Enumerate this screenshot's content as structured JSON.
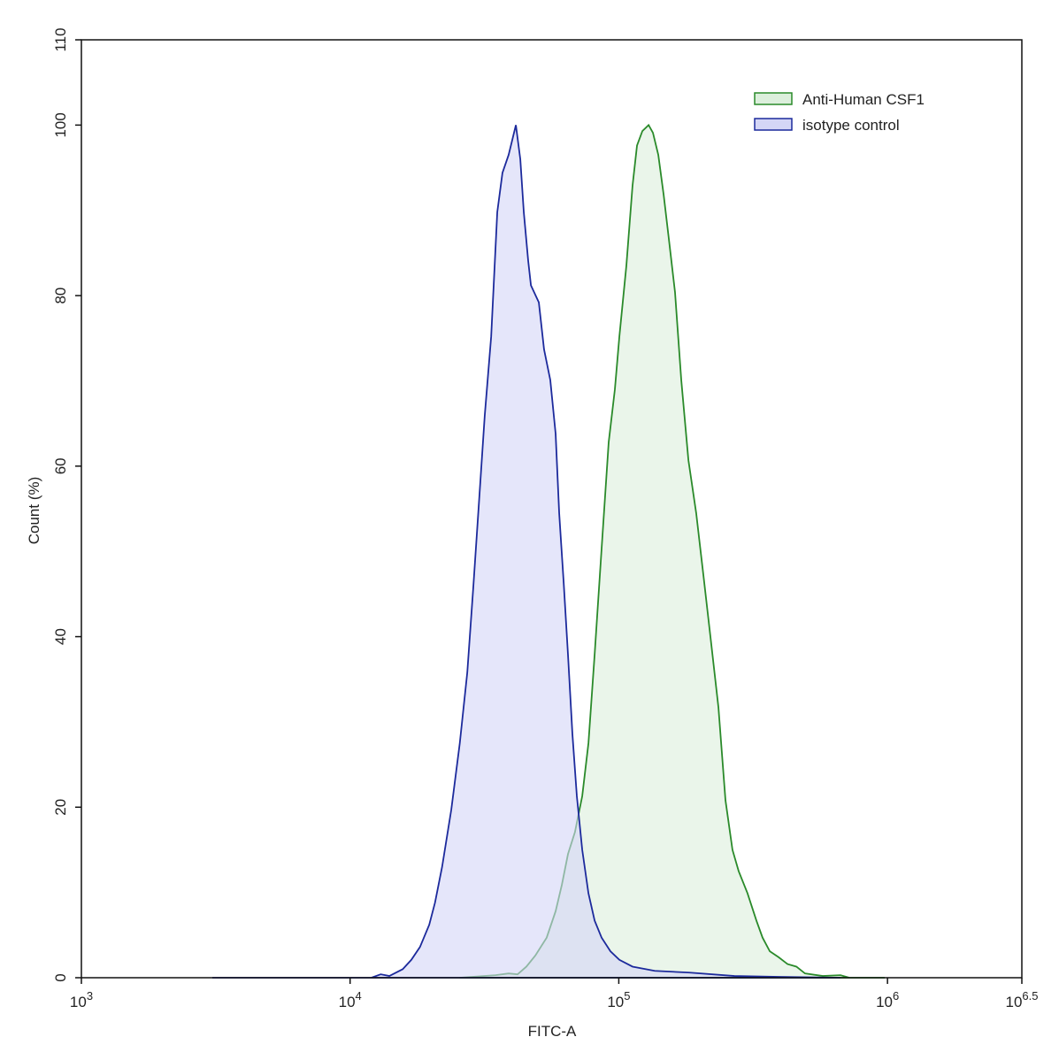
{
  "chart_data": {
    "type": "histogram-overlay",
    "x_label": "FITC-A",
    "y_label": "Count  (%)",
    "xscale": "log",
    "xlim": [
      1000,
      3162277.66
    ],
    "ylim": [
      0,
      110
    ],
    "xticks": [
      {
        "value": 1000,
        "label": "10",
        "exponent": "3"
      },
      {
        "value": 10000,
        "label": "10",
        "exponent": "4"
      },
      {
        "value": 100000,
        "label": "10",
        "exponent": "5"
      },
      {
        "value": 1000000,
        "label": "10",
        "exponent": "6"
      },
      {
        "value": 3162277.66,
        "label": "10",
        "exponent": "6.5"
      }
    ],
    "yticks": [
      0,
      20,
      40,
      60,
      80,
      100,
      110
    ],
    "legend": "upper right",
    "series": [
      {
        "name": "Anti-Human CSF1",
        "color": "#2a8a2a",
        "fill": "#dcefdc",
        "x": [
          25600,
          34800,
          38900,
          42000,
          45300,
          48900,
          53900,
          58200,
          61400,
          64700,
          68700,
          73100,
          77100,
          81300,
          86300,
          91700,
          96700,
          100500,
          106700,
          112500,
          116900,
          122400,
          129100,
          134000,
          140300,
          146900,
          153500,
          161900,
          170800,
          181600,
          194100,
          206500,
          219300,
          234900,
          249500,
          264900,
          279300,
          301300,
          325200,
          342800,
          364800,
          393600,
          424600,
          458100,
          493200,
          574100,
          668300,
          721100,
          977100
        ],
        "values": [
          0,
          0.3,
          0.5,
          0.4,
          1.3,
          2.6,
          4.7,
          7.8,
          10.9,
          14.5,
          17.1,
          21.3,
          27.5,
          37.9,
          50.3,
          62.8,
          69.0,
          75.2,
          83.5,
          92.9,
          97.6,
          99.3,
          100,
          99.1,
          96.5,
          91.8,
          86.7,
          80.4,
          70.1,
          60.7,
          54.5,
          47.2,
          40.0,
          31.7,
          20.8,
          15.0,
          12.5,
          9.9,
          6.7,
          4.7,
          3.1,
          2.4,
          1.6,
          1.3,
          0.5,
          0.2,
          0.3,
          0,
          0
        ]
      },
      {
        "name": "isotype control",
        "color": "#1c2a9c",
        "fill": "#d4d6f6",
        "x": [
          3070,
          12000,
          13000,
          14000,
          15700,
          16900,
          18200,
          19700,
          20700,
          22000,
          23800,
          25600,
          27300,
          28800,
          30300,
          31700,
          33500,
          35300,
          36900,
          38900,
          41400,
          43000,
          44300,
          46000,
          47100,
          50400,
          52700,
          55600,
          58200,
          60000,
          62400,
          64700,
          67200,
          69800,
          73100,
          77100,
          81300,
          86300,
          93100,
          100500,
          112500,
          136100,
          184100,
          269200,
          393600,
          668300
        ],
        "values": [
          0,
          0,
          0.4,
          0.2,
          1.0,
          2.1,
          3.6,
          6.2,
          8.8,
          13.0,
          19.7,
          27.5,
          35.8,
          46.2,
          56.6,
          65.9,
          75.2,
          89.8,
          94.4,
          96.5,
          100,
          96.0,
          89.8,
          84.1,
          81.2,
          79.2,
          73.7,
          70.1,
          63.8,
          54.5,
          46.2,
          37.9,
          28.6,
          21.3,
          15.0,
          9.9,
          6.7,
          4.7,
          3.1,
          2.1,
          1.3,
          0.8,
          0.6,
          0.2,
          0.1,
          0
        ]
      }
    ]
  }
}
